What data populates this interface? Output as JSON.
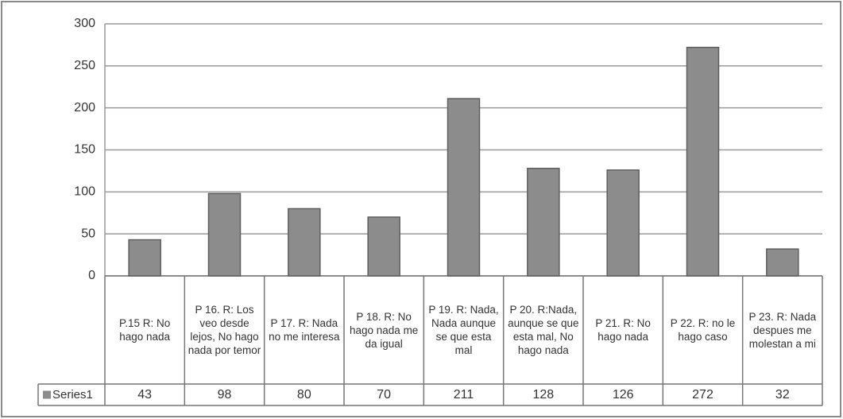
{
  "chart_data": {
    "type": "bar",
    "categories": [
      "P.15 R: No hago nada",
      "P 16. R: Los veo desde lejos, No hago nada por temor",
      "P 17. R: Nada no me interesa",
      "P 18. R: No hago nada me da igual",
      "P 19. R: Nada, Nada aunque se que esta mal",
      "P 20. R:Nada, aunque se que esta mal, No hago nada",
      "P 21. R: No hago nada",
      "P 22. R: no le hago caso",
      "P 23. R: Nada despues me molestan a mi"
    ],
    "series": [
      {
        "name": "Series1",
        "color": "#8c8c8c",
        "values": [
          43,
          98,
          80,
          70,
          211,
          128,
          126,
          272,
          32
        ]
      }
    ],
    "ylim": [
      0,
      300
    ],
    "yticks": [
      0,
      50,
      100,
      150,
      200,
      250,
      300
    ],
    "grid": true,
    "data_table": true
  }
}
